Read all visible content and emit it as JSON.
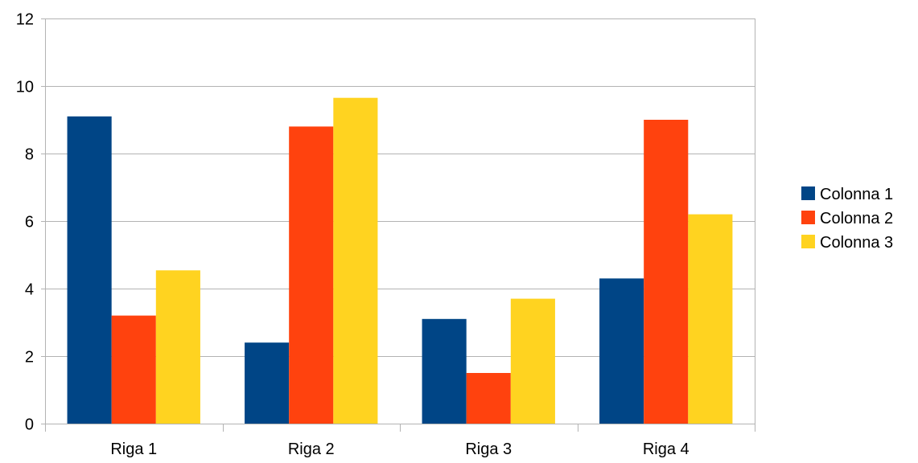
{
  "chart_data": {
    "type": "bar",
    "title": "",
    "xlabel": "",
    "ylabel": "",
    "categories": [
      "Riga 1",
      "Riga 2",
      "Riga 3",
      "Riga 4"
    ],
    "series": [
      {
        "name": "Colonna 1",
        "color": "#004586",
        "values": [
          9.1,
          2.4,
          3.1,
          4.3
        ]
      },
      {
        "name": "Colonna 2",
        "color": "#ff420e",
        "values": [
          3.2,
          8.8,
          1.5,
          9.0
        ]
      },
      {
        "name": "Colonna 3",
        "color": "#ffd320",
        "values": [
          4.54,
          9.65,
          3.7,
          6.2
        ]
      }
    ],
    "ylim": [
      0,
      12
    ],
    "yticks": [
      0,
      2,
      4,
      6,
      8,
      10,
      12
    ],
    "grid": true,
    "legend": "right"
  }
}
